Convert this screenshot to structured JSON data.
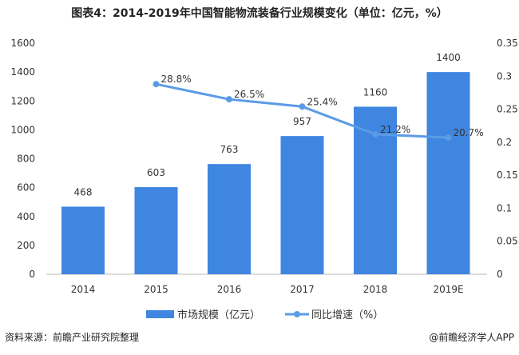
{
  "chart_data": {
    "type": "bar+line",
    "title": "图表4：2014-2019年中国智能物流装备行业规模变化（单位：亿元，%）",
    "categories": [
      "2014",
      "2015",
      "2016",
      "2017",
      "2018",
      "2019E"
    ],
    "series": [
      {
        "name": "市场规模（亿元）",
        "type": "bar",
        "axis": "left",
        "values": [
          468,
          603,
          763,
          957,
          1160,
          1400
        ],
        "labels": [
          "468",
          "603",
          "763",
          "957",
          "1160",
          "1400"
        ],
        "color": "#3f86e0"
      },
      {
        "name": "同比增速（%）",
        "type": "line",
        "axis": "right",
        "values": [
          null,
          0.288,
          0.265,
          0.254,
          0.212,
          0.207
        ],
        "labels": [
          "",
          "28.8%",
          "26.5%",
          "25.4%",
          "21.2%",
          "20.7%"
        ],
        "color": "#5b9be6"
      }
    ],
    "left_axis": {
      "ylim": [
        0,
        1600
      ],
      "ticks": [
        "0",
        "200",
        "400",
        "600",
        "800",
        "1000",
        "1200",
        "1400",
        "1600"
      ]
    },
    "right_axis": {
      "ylim": [
        0,
        0.35
      ],
      "ticks": [
        "0",
        "0.05",
        "0.1",
        "0.15",
        "0.2",
        "0.25",
        "0.3",
        "0.35"
      ]
    },
    "grid": false,
    "legend": "bottom"
  },
  "footer": {
    "source": "资料来源：前瞻产业研究院整理",
    "credit": "@前瞻经济学人APP"
  }
}
